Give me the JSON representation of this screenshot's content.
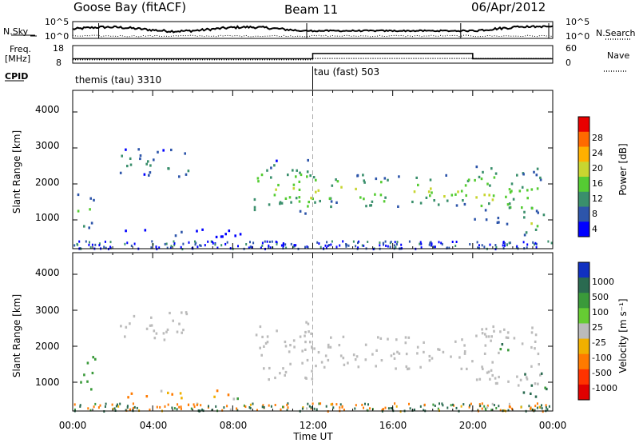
{
  "header": {
    "station": "Goose Bay (fitACF)",
    "beam": "Beam 11",
    "date": "06/Apr/2012"
  },
  "status_panels": {
    "nsky_label": "N.Sky",
    "nsearch_label": "N.Search",
    "noise_ticks": [
      "10^5",
      "10^0"
    ],
    "freq_label": "Freq.",
    "freq_unit": "[MHz]",
    "freq_ticks": [
      "18",
      "8"
    ],
    "nave_label": "Nave",
    "nave_ticks": [
      "60",
      "0"
    ],
    "cpid_label": "CPID",
    "cpid_segments": [
      {
        "label": "themis (tau) 3310",
        "start_hour": 0,
        "end_hour": 12
      },
      {
        "label": "tau (fast) 503",
        "start_hour": 12,
        "end_hour": 24
      }
    ],
    "freq_mhz": [
      {
        "start_hour": 0,
        "end_hour": 12,
        "value": 10.5
      },
      {
        "start_hour": 12,
        "end_hour": 20,
        "value": 13.5
      },
      {
        "start_hour": 20,
        "end_hour": 24,
        "value": 10.5
      }
    ],
    "nave": [
      {
        "start_hour": 0,
        "end_hour": 12,
        "value": 12
      },
      {
        "start_hour": 12,
        "end_hour": 24,
        "value": 16
      }
    ]
  },
  "chart_data": [
    {
      "type": "heatmap",
      "panel": "power",
      "ylabel": "Slant Range [km]",
      "yticks": [
        "1000",
        "2000",
        "3000",
        "4000"
      ],
      "ylim": [
        200,
        4600
      ],
      "xlim": [
        0,
        24
      ],
      "colorbar": {
        "label": "Power [dB]",
        "ticks": [
          "4",
          "8",
          "12",
          "16",
          "20",
          "24",
          "28"
        ],
        "colors": [
          "#0000ff",
          "#2d55aa",
          "#3a8f6c",
          "#55cc33",
          "#c8d530",
          "#ffb000",
          "#ff6a00",
          "#e80000"
        ]
      },
      "regions": [
        {
          "t0": 0.2,
          "t1": 1.1,
          "r0": 800,
          "r1": 1800,
          "value": 14
        },
        {
          "t0": 2.3,
          "t1": 5.8,
          "r0": 2200,
          "r1": 3000,
          "value": 12
        },
        {
          "t0": 2.6,
          "t1": 8.4,
          "r0": 550,
          "r1": 800,
          "value": 6
        },
        {
          "t0": 9.0,
          "t1": 12.0,
          "r0": 1100,
          "r1": 2700,
          "value": 16
        },
        {
          "t0": 12.0,
          "t1": 20.0,
          "r0": 1400,
          "r1": 2300,
          "value": 17
        },
        {
          "t0": 20.0,
          "t1": 23.4,
          "r0": 900,
          "r1": 2600,
          "value": 15
        },
        {
          "t0": 22.5,
          "t1": 23.8,
          "r0": 600,
          "r1": 1300,
          "value": 16
        }
      ]
    },
    {
      "type": "heatmap",
      "panel": "velocity",
      "ylabel": "Slant Range [km]",
      "yticks": [
        "1000",
        "2000",
        "3000",
        "4000"
      ],
      "ylim": [
        200,
        4600
      ],
      "xlim": [
        0,
        24
      ],
      "xlabel": "Time UT",
      "xticks": [
        "00:00",
        "04:00",
        "08:00",
        "12:00",
        "16:00",
        "20:00",
        "00:00"
      ],
      "colorbar": {
        "label": "Velocity [m s⁻¹]",
        "ticks": [
          "1000",
          "500",
          "100",
          "25",
          "-25",
          "-100",
          "-500",
          "-1000"
        ],
        "colors": [
          "#1030c0",
          "#2a6a50",
          "#3a9a3a",
          "#66cc33",
          "#bbbbbb",
          "#f0b000",
          "#ff7a00",
          "#ff3300",
          "#e00000"
        ]
      },
      "regions": [
        {
          "t0": 0.2,
          "t1": 1.1,
          "r0": 800,
          "r1": 1800,
          "value": 40
        },
        {
          "t0": 2.3,
          "t1": 5.8,
          "r0": 2200,
          "r1": 3000,
          "value": 0
        },
        {
          "t0": 2.6,
          "t1": 8.4,
          "r0": 550,
          "r1": 800,
          "value": -60
        },
        {
          "t0": 9.0,
          "t1": 12.0,
          "r0": 1100,
          "r1": 2700,
          "value": 0
        },
        {
          "t0": 12.0,
          "t1": 20.0,
          "r0": 1400,
          "r1": 2300,
          "value": 0
        },
        {
          "t0": 20.0,
          "t1": 23.4,
          "r0": 900,
          "r1": 2600,
          "value": 0
        },
        {
          "t0": 21.2,
          "t1": 22.6,
          "r0": 1900,
          "r1": 2100,
          "value": 120
        },
        {
          "t0": 22.5,
          "t1": 23.8,
          "r0": 600,
          "r1": 1300,
          "value": 200
        }
      ]
    }
  ]
}
